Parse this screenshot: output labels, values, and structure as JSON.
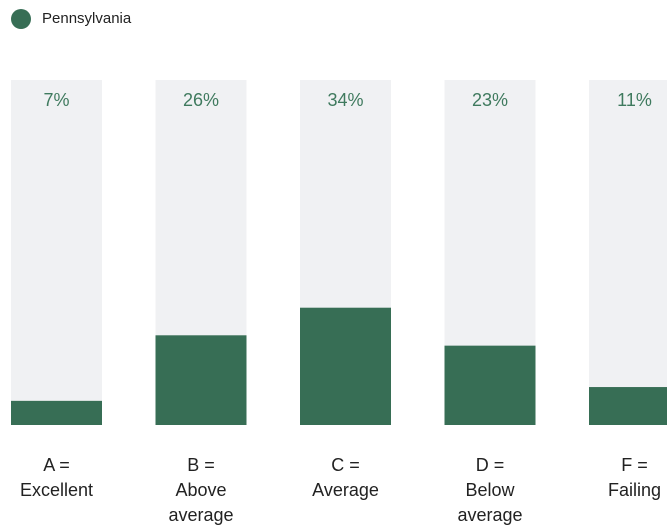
{
  "chart_data": {
    "type": "bar",
    "categories": [
      "A = Excellent",
      "B = Above average",
      "C = Average",
      "D = Below average",
      "F = Failing"
    ],
    "series": [
      {
        "name": "Pennsylvania",
        "color": "#376e55",
        "values": [
          7,
          26,
          34,
          23,
          11
        ],
        "value_labels": [
          "7%",
          "26%",
          "34%",
          "23%",
          "11%"
        ]
      }
    ],
    "ylim": [
      0,
      100
    ]
  }
}
